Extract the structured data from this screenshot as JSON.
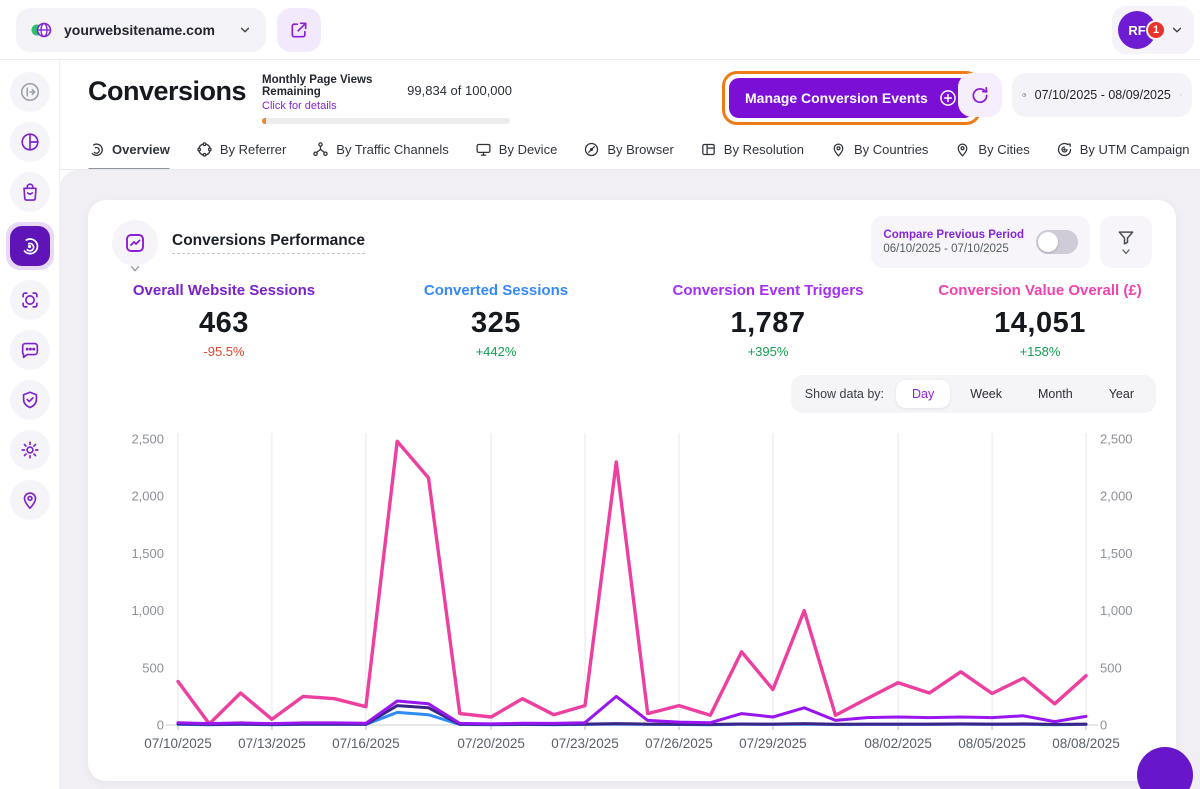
{
  "topbar": {
    "website": {
      "name": "yourwebsitename.com"
    },
    "avatar": {
      "initials": "RF",
      "badge": "1"
    }
  },
  "sidebar": {
    "items": [
      {
        "name": "collapse"
      },
      {
        "name": "analytics"
      },
      {
        "name": "store"
      },
      {
        "name": "conversions",
        "active": true
      },
      {
        "name": "recordings"
      },
      {
        "name": "feedback"
      },
      {
        "name": "security"
      },
      {
        "name": "settings"
      },
      {
        "name": "locations"
      }
    ]
  },
  "header": {
    "title": "Conversions",
    "quota": {
      "label": "Monthly Page Views Remaining",
      "value": "99,834 of 100,000",
      "link": "Click for details"
    },
    "manage_button": {
      "label": "Manage Conversion Events"
    },
    "date_range": "07/10/2025 - 08/09/2025"
  },
  "tabs": [
    {
      "label": "Overview",
      "active": true
    },
    {
      "label": "By Referrer"
    },
    {
      "label": "By Traffic Channels"
    },
    {
      "label": "By Device"
    },
    {
      "label": "By Browser"
    },
    {
      "label": "By Resolution"
    },
    {
      "label": "By Countries"
    },
    {
      "label": "By Cities"
    },
    {
      "label": "By UTM Campaign"
    }
  ],
  "card": {
    "title": "Conversions Performance",
    "compare": {
      "label": "Compare Previous Period",
      "range": "06/10/2025 - 07/10/2025",
      "enabled": false
    },
    "metrics": [
      {
        "label": "Overall Website Sessions",
        "value": "463",
        "delta": "-95.5%",
        "color": "#7b22cc",
        "delta_color": "#e8432e"
      },
      {
        "label": "Converted Sessions",
        "value": "325",
        "delta": "+442%",
        "color": "#368af7",
        "delta_color": "#12a150"
      },
      {
        "label": "Conversion Event Triggers",
        "value": "1,787",
        "delta": "+395%",
        "color": "#a62ef5",
        "delta_color": "#12a150"
      },
      {
        "label": "Conversion Value Overall (£)",
        "value": "14,051",
        "delta": "+158%",
        "color": "#f043af",
        "delta_color": "#12a150"
      }
    ],
    "show_data_by": {
      "label": "Show data by:",
      "options": [
        {
          "label": "Day",
          "active": true
        },
        {
          "label": "Week"
        },
        {
          "label": "Month"
        },
        {
          "label": "Year"
        }
      ]
    }
  },
  "chart_data": {
    "type": "line",
    "x": [
      "07/10/2025",
      "07/11/2025",
      "07/12/2025",
      "07/13/2025",
      "07/14/2025",
      "07/15/2025",
      "07/16/2025",
      "07/17/2025",
      "07/18/2025",
      "07/19/2025",
      "07/20/2025",
      "07/21/2025",
      "07/22/2025",
      "07/23/2025",
      "07/24/2025",
      "07/25/2025",
      "07/26/2025",
      "07/27/2025",
      "07/28/2025",
      "07/29/2025",
      "07/30/2025",
      "07/31/2025",
      "08/01/2025",
      "08/02/2025",
      "08/03/2025",
      "08/04/2025",
      "08/05/2025",
      "08/06/2025",
      "08/07/2025",
      "08/08/2025"
    ],
    "x_tick_indices": [
      0,
      3,
      6,
      10,
      13,
      16,
      19,
      23,
      26,
      29
    ],
    "ylim": [
      0,
      2500
    ],
    "yticks": [
      0,
      500,
      1000,
      1500,
      2000,
      2500
    ],
    "grid": "vertical",
    "legend": "none",
    "series": [
      {
        "name": "Conversion Value Overall (£)",
        "color": "#ec3f9f",
        "width": 3.4,
        "values": [
          380,
          10,
          280,
          50,
          250,
          230,
          160,
          2480,
          2160,
          100,
          70,
          230,
          90,
          170,
          2300,
          100,
          170,
          85,
          640,
          310,
          1000,
          85,
          230,
          370,
          280,
          465,
          275,
          410,
          185,
          430
        ]
      },
      {
        "name": "Converted Sessions",
        "color": "#2e8bf7",
        "width": 3,
        "values": [
          5,
          3,
          5,
          3,
          5,
          5,
          5,
          110,
          90,
          4,
          3,
          4,
          3,
          5,
          8,
          5,
          4,
          3,
          6,
          5,
          8,
          4,
          5,
          5,
          5,
          6,
          5,
          6,
          3,
          5
        ]
      },
      {
        "name": "Overall Website Sessions",
        "color": "#3b2586",
        "width": 3,
        "values": [
          10,
          5,
          8,
          5,
          8,
          8,
          6,
          170,
          150,
          6,
          5,
          6,
          5,
          8,
          12,
          8,
          6,
          5,
          9,
          8,
          12,
          6,
          8,
          8,
          8,
          10,
          8,
          10,
          5,
          8
        ]
      },
      {
        "name": "Conversion Event Triggers",
        "color": "#9916f0",
        "width": 3,
        "values": [
          20,
          12,
          18,
          12,
          18,
          18,
          15,
          210,
          185,
          14,
          10,
          15,
          14,
          20,
          250,
          40,
          25,
          20,
          100,
          70,
          150,
          40,
          65,
          70,
          65,
          70,
          65,
          80,
          30,
          75
        ]
      }
    ]
  }
}
